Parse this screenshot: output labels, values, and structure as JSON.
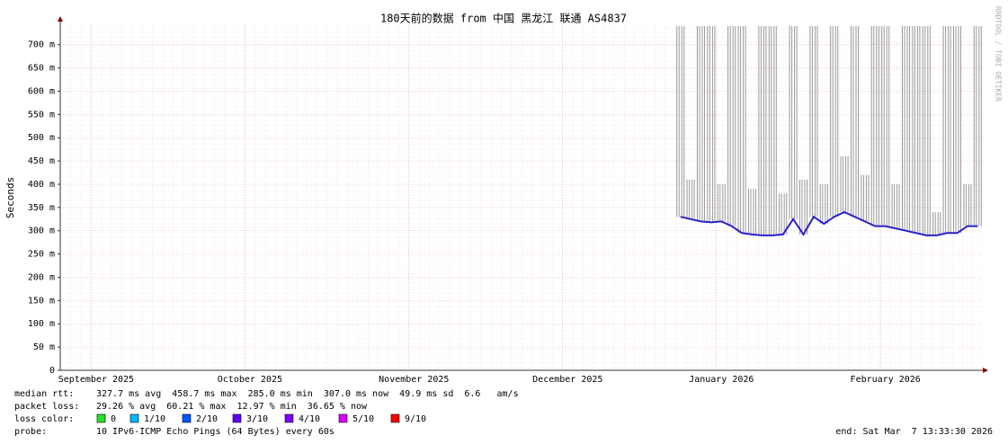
{
  "chart_data": {
    "type": "line",
    "title": "180天前的数据 from 中国 黑龙江 联通 AS4837",
    "y_label": "Seconds",
    "watermark": "RRDTOOL / TOBI OETIKER",
    "categories": [
      null,
      null,
      null,
      "September 2025",
      null,
      null,
      null,
      null,
      null,
      null,
      null,
      null,
      null,
      null,
      null,
      null,
      null,
      null,
      "October 2025",
      null,
      null,
      null,
      null,
      null,
      null,
      null,
      null,
      null,
      null,
      null,
      null,
      null,
      null,
      null,
      "November 2025",
      null,
      null,
      null,
      null,
      null,
      null,
      null,
      null,
      null,
      null,
      null,
      null,
      null,
      null,
      "December 2025",
      null,
      null,
      null,
      null,
      null,
      null,
      null,
      null,
      null,
      null,
      null,
      null,
      null,
      null,
      "January 2026",
      null,
      null,
      null,
      null,
      null,
      null,
      null,
      null,
      null,
      null,
      null,
      null,
      null,
      null,
      null,
      "February 2026",
      null,
      null,
      null,
      null,
      null,
      null,
      null,
      null,
      null
    ],
    "series": [
      {
        "color": "#9a9a9a",
        "values": [
          null,
          null,
          null,
          null,
          null,
          null,
          null,
          null,
          null,
          null,
          null,
          null,
          null,
          null,
          null,
          null,
          null,
          null,
          null,
          null,
          null,
          null,
          null,
          null,
          null,
          null,
          null,
          null,
          null,
          null,
          null,
          null,
          null,
          null,
          null,
          null,
          null,
          null,
          null,
          null,
          null,
          null,
          null,
          null,
          null,
          null,
          null,
          null,
          null,
          null,
          null,
          null,
          null,
          null,
          null,
          null,
          null,
          null,
          null,
          null,
          0.74,
          0.41,
          0.74,
          0.74,
          0.4,
          0.74,
          0.74,
          0.39,
          0.74,
          0.74,
          0.38,
          0.74,
          0.41,
          0.74,
          0.4,
          0.74,
          0.46,
          0.74,
          0.42,
          0.74,
          0.74,
          0.4,
          0.74,
          0.74,
          0.74,
          0.34,
          0.74,
          0.74,
          0.4,
          0.74
        ]
      },
      {
        "color": "#2a20c8",
        "values": [
          null,
          null,
          null,
          null,
          null,
          null,
          null,
          null,
          null,
          null,
          null,
          null,
          null,
          null,
          null,
          null,
          null,
          null,
          null,
          null,
          null,
          null,
          null,
          null,
          null,
          null,
          null,
          null,
          null,
          null,
          null,
          null,
          null,
          null,
          null,
          null,
          null,
          null,
          null,
          null,
          null,
          null,
          null,
          null,
          null,
          null,
          null,
          null,
          null,
          null,
          null,
          null,
          null,
          null,
          null,
          null,
          null,
          null,
          null,
          null,
          0.33,
          0.325,
          0.32,
          0.318,
          0.32,
          0.31,
          0.295,
          0.292,
          0.29,
          0.29,
          0.292,
          0.325,
          0.292,
          0.33,
          0.315,
          0.33,
          0.34,
          0.33,
          0.32,
          0.31,
          0.31,
          0.305,
          0.3,
          0.295,
          0.29,
          0.29,
          0.295,
          0.295,
          0.31,
          0.31
        ]
      }
    ],
    "ylim": [
      0,
      0.742
    ],
    "yticks": [
      0,
      {
        "value": 0.05,
        "label": "50 m"
      },
      {
        "value": 0.1,
        "label": "100 m"
      },
      {
        "value": 0.15,
        "label": "150 m"
      },
      {
        "value": 0.2,
        "label": "200 m"
      },
      {
        "value": 0.25,
        "label": "250 m"
      },
      {
        "value": 0.3,
        "label": "300 m"
      },
      {
        "value": 0.35,
        "label": "350 m"
      },
      {
        "value": 0.4,
        "label": "400 m"
      },
      {
        "value": 0.45,
        "label": "450 m"
      },
      {
        "value": 0.5,
        "label": "500 m"
      },
      {
        "value": 0.55,
        "label": "550 m"
      },
      {
        "value": 0.6,
        "label": "600 m"
      },
      {
        "value": 0.65,
        "label": "650 m"
      },
      {
        "value": 0.7,
        "label": "700 m"
      }
    ],
    "grid": true,
    "stats": {
      "median_label": "median rtt:",
      "median_text": "327.7 ms avg  458.7 ms max  285.0 ms min  307.0 ms now  49.9 ms sd  6.6   am/s",
      "loss_label": "packet loss:",
      "loss_text": "29.26 % avg  60.21 % max  12.97 % min  36.65 % now",
      "loss_color_label": "loss color:",
      "loss_colors": [
        {
          "label": "0",
          "color": "#26e026"
        },
        {
          "label": "1/10",
          "color": "#00b8ff"
        },
        {
          "label": "2/10",
          "color": "#0059ff"
        },
        {
          "label": "3/10",
          "color": "#5e00ff"
        },
        {
          "label": "4/10",
          "color": "#7e00ff"
        },
        {
          "label": "5/10",
          "color": "#dd00ff"
        },
        {
          "label": "9/10",
          "color": "#ff0000"
        }
      ],
      "probe_label": "probe:",
      "probe_text": "10 IPv6-ICMP Echo Pings (64 Bytes) every 60s",
      "end_text": "end: Sat Mar  7 13:33:30 2026"
    }
  }
}
